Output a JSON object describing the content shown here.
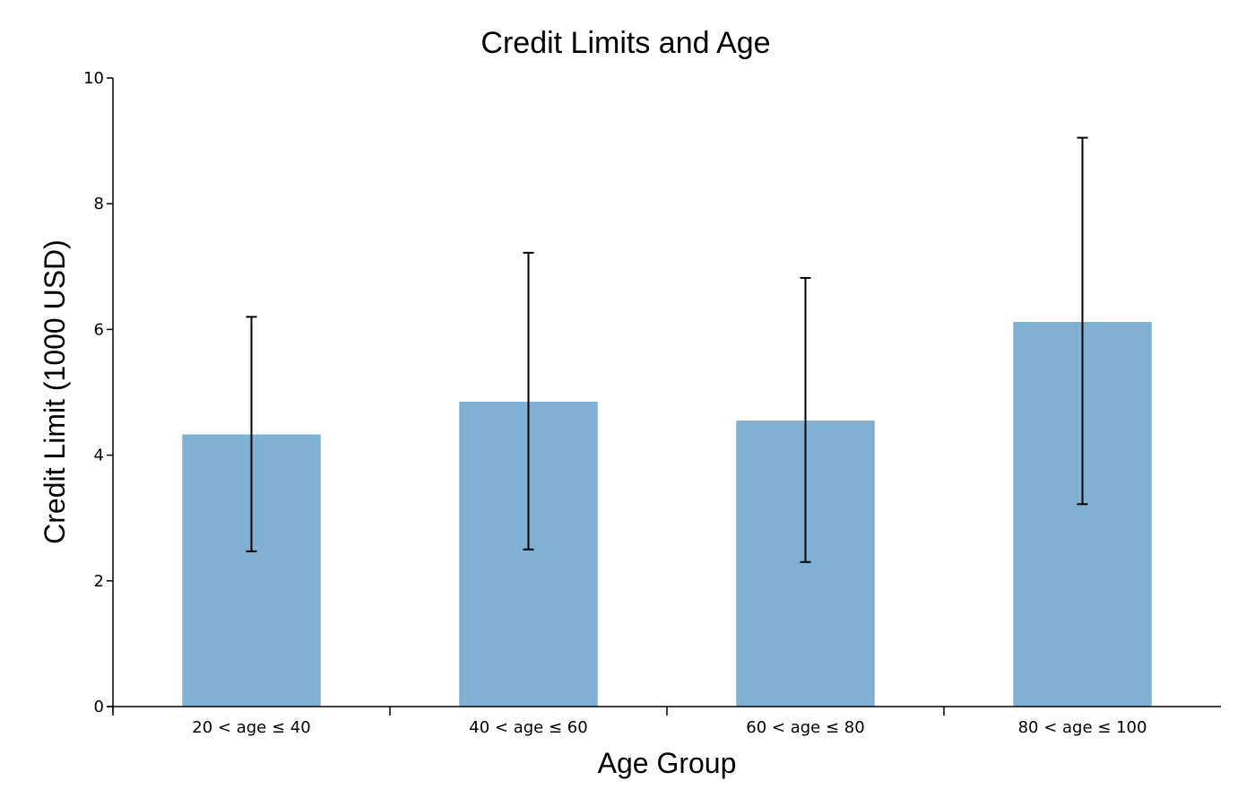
{
  "chart_data": {
    "type": "bar",
    "title": "Credit Limits and Age",
    "xlabel": "Age Group",
    "ylabel": "Credit Limit (1000 USD)",
    "ylim": [
      0,
      10
    ],
    "yticks": [
      "0",
      "2",
      "4",
      "6",
      "8",
      "10"
    ],
    "ytick_values": [
      0,
      2,
      4,
      6,
      8,
      10
    ],
    "categories": [
      "20 < age ≤ 40",
      "40 < age ≤ 60",
      "60 < age ≤ 80",
      "80 < age ≤ 100"
    ],
    "values": [
      4.33,
      4.85,
      4.55,
      6.12
    ],
    "error_low": [
      2.47,
      2.5,
      2.3,
      3.22
    ],
    "error_high": [
      6.2,
      7.22,
      6.82,
      9.05
    ],
    "bar_color": "#80b0d2",
    "grid": false,
    "legend": "none"
  }
}
